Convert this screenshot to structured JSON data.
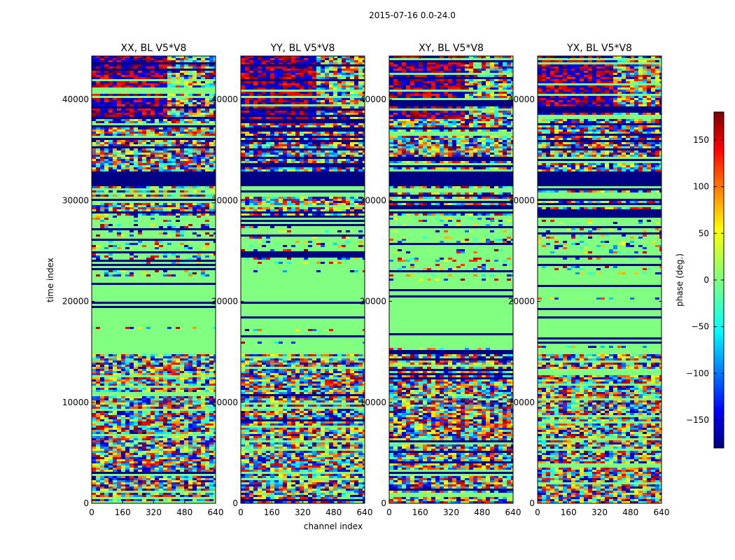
{
  "figure": {
    "title": "2015-07-16 0.0-24.0"
  },
  "chart_data": {
    "type": "heatmap",
    "title": "2015-07-16 0.0-24.0",
    "xlabel": "channel index",
    "ylabel": "time index",
    "xlim": [
      0,
      640
    ],
    "ylim": [
      0,
      44300
    ],
    "xticks": [
      "0",
      "160",
      "320",
      "480",
      "640"
    ],
    "yticks": [
      "0",
      "10000",
      "20000",
      "30000",
      "40000"
    ],
    "panels": [
      {
        "title": "XX, BL V5*V8"
      },
      {
        "title": "YY, BL V5*V8"
      },
      {
        "title": "XY, BL V5*V8"
      },
      {
        "title": "YX, BL V5*V8"
      }
    ],
    "colorbar": {
      "label": "phase (deg.)",
      "range": [
        -180,
        180
      ],
      "ticks": [
        "150",
        "100",
        "50",
        "0",
        "−50",
        "−100",
        "−150"
      ],
      "tick_values": [
        150,
        100,
        50,
        0,
        -50,
        -100,
        -150
      ],
      "colormap": "jet"
    },
    "time_bands": [
      {
        "y0": 0,
        "y1": 14800,
        "pattern": "noisy"
      },
      {
        "y0": 14800,
        "y1": 22500,
        "pattern": "mostly zero phase, dark stripes"
      },
      {
        "y0": 22500,
        "y1": 28500,
        "pattern": "striped noise"
      },
      {
        "y0": 28500,
        "y1": 31500,
        "pattern": "mixed"
      },
      {
        "y0": 31500,
        "y1": 32800,
        "pattern": "solid -180"
      },
      {
        "y0": 32800,
        "y1": 44300,
        "pattern": "noisy with wide-angle structure"
      }
    ]
  }
}
